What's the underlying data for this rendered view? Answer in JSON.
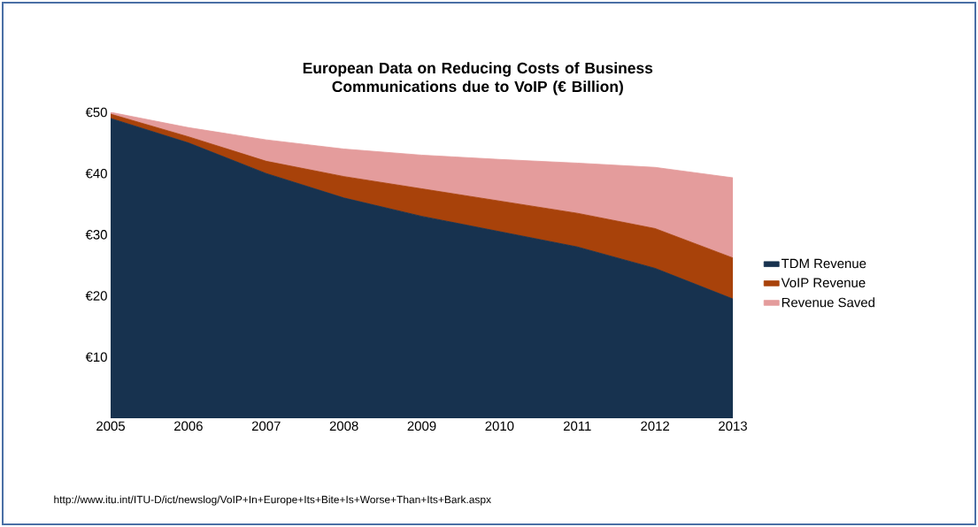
{
  "chart_data": {
    "type": "area",
    "stacked": true,
    "title": "European Data on Reducing Costs of Business Communications due to VoIP (€ Billion)",
    "categories": [
      "2005",
      "2006",
      "2007",
      "2008",
      "2009",
      "2010",
      "2011",
      "2012",
      "2013"
    ],
    "series": [
      {
        "name": "TDM Revenue",
        "color": "#17324f",
        "values": [
          49,
          45,
          40,
          36,
          33,
          30.5,
          28,
          24.5,
          19.5
        ]
      },
      {
        "name": "VoIP Revenue",
        "color": "#a8420a",
        "values": [
          0.7,
          1,
          2,
          3.5,
          4.5,
          5,
          5.5,
          6.5,
          6.7
        ]
      },
      {
        "name": "Revenue Saved",
        "color": "#e49c9c",
        "values": [
          0.3,
          1.5,
          3.5,
          4.5,
          5.5,
          6.8,
          8.2,
          10,
          13.1
        ]
      }
    ],
    "ylim": [
      0,
      50
    ],
    "yticks": [
      {
        "value": 10,
        "label": "€10"
      },
      {
        "value": 20,
        "label": "€20"
      },
      {
        "value": 30,
        "label": "€30"
      },
      {
        "value": 40,
        "label": "€40"
      },
      {
        "value": 50,
        "label": "€50"
      }
    ],
    "legend": "right",
    "annotations": [
      "http://www.itu.int/ITU-D/ict/newslog/VoIP+In+Europe+Its+Bite+Is+Worse+Than+Its+Bark.aspx"
    ]
  }
}
